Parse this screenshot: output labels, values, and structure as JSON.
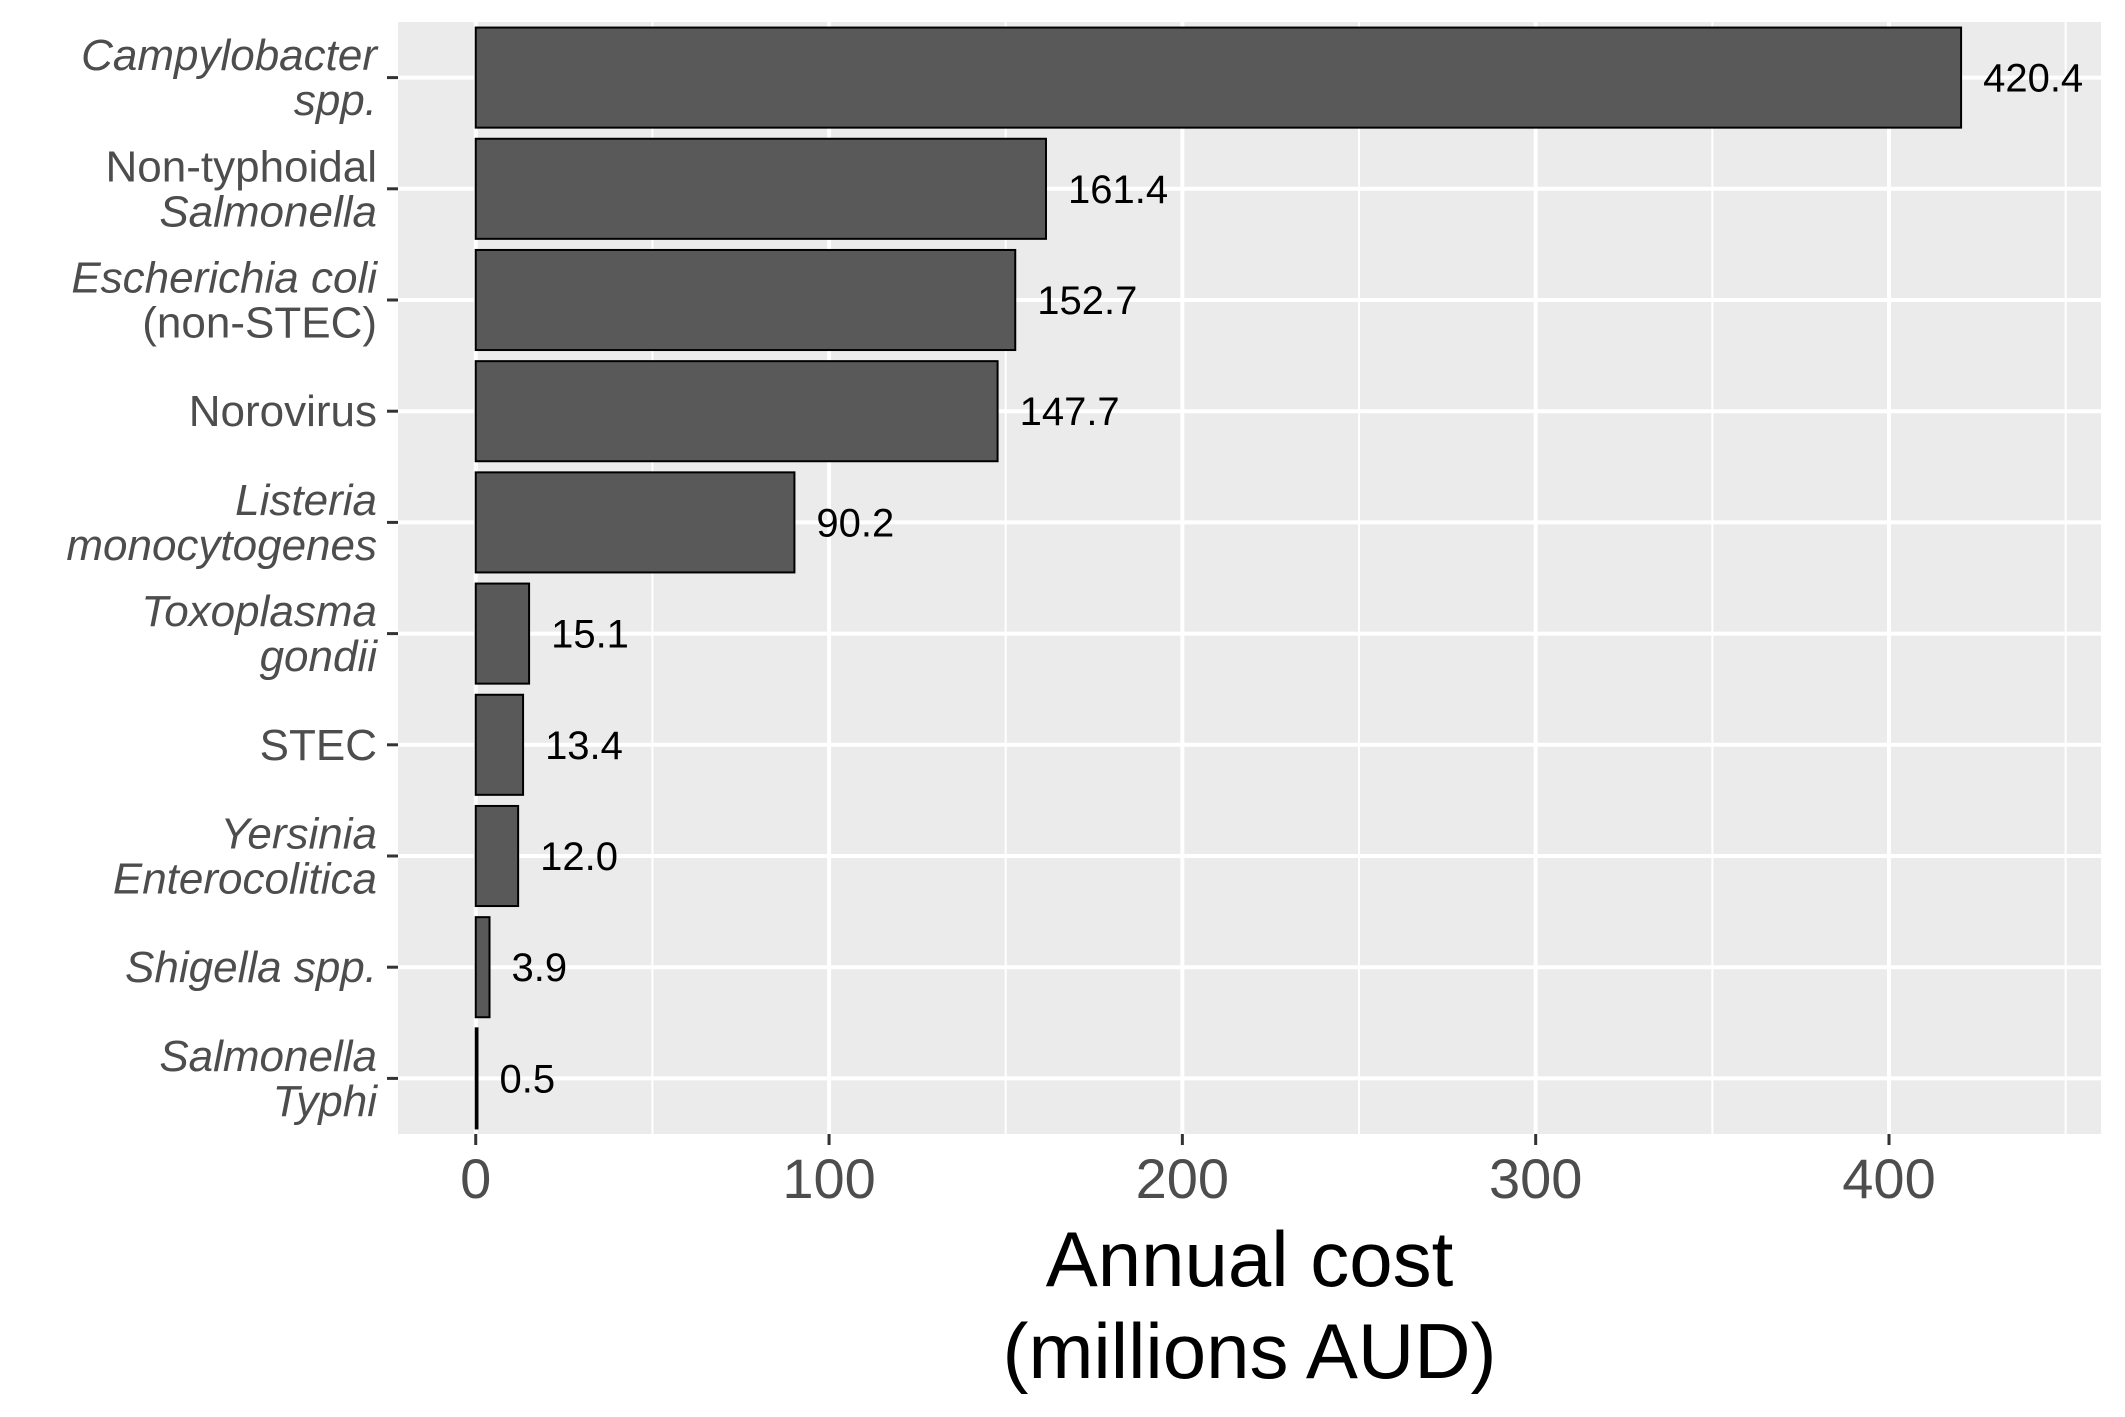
{
  "chart_data": {
    "type": "bar",
    "orientation": "horizontal",
    "categories": [
      {
        "lines": [
          "Campylobacter",
          "spp."
        ],
        "italic": [
          true,
          true
        ]
      },
      {
        "lines": [
          "Non-typhoidal",
          "Salmonella"
        ],
        "italic": [
          false,
          true
        ]
      },
      {
        "lines": [
          "Escherichia coli",
          "(non-STEC)"
        ],
        "italic": [
          true,
          false
        ]
      },
      {
        "lines": [
          "Norovirus"
        ],
        "italic": [
          false
        ]
      },
      {
        "lines": [
          "Listeria",
          "monocytogenes"
        ],
        "italic": [
          true,
          true
        ]
      },
      {
        "lines": [
          "Toxoplasma",
          "gondii"
        ],
        "italic": [
          true,
          true
        ]
      },
      {
        "lines": [
          "STEC"
        ],
        "italic": [
          false
        ]
      },
      {
        "lines": [
          "Yersinia",
          "Enterocolitica"
        ],
        "italic": [
          true,
          true
        ]
      },
      {
        "lines": [
          "Shigella spp."
        ],
        "italic": [
          true
        ]
      },
      {
        "lines": [
          "Salmonella",
          "Typhi"
        ],
        "italic": [
          true,
          true
        ]
      }
    ],
    "values": [
      420.4,
      161.4,
      152.7,
      147.7,
      90.2,
      15.1,
      13.4,
      12.0,
      3.9,
      0.5
    ],
    "data_labels": [
      "420.4",
      "161.4",
      "152.7",
      "147.7",
      "90.2",
      "15.1",
      "13.4",
      "12.0",
      "3.9",
      "0.5"
    ],
    "xlabel": [
      "Annual cost",
      "(millions AUD)"
    ],
    "ylabel": "",
    "xlim": [
      -22,
      460
    ],
    "x_ticks": [
      0,
      100,
      200,
      300,
      400
    ],
    "x_minor_ticks": [
      50,
      150,
      250,
      350,
      450
    ],
    "grid": true,
    "colors": {
      "panel": "#ebebeb",
      "grid": "#ffffff",
      "bar_fill": "#595959",
      "bar_stroke": "#000000",
      "tick": "#333333"
    }
  }
}
